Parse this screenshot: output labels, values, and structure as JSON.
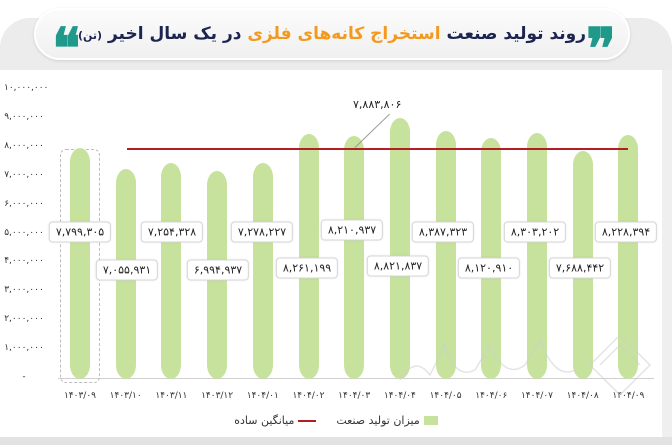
{
  "header": {
    "title_part1": "روند تولید صنعت ",
    "title_highlight": "استخراج کانه‌های فلزی",
    "title_part2": " در یک سال اخیر",
    "title_unit": "(تن)",
    "quote_open": "❝",
    "quote_close": "❞"
  },
  "colors": {
    "accent_teal": "#1f9a8a",
    "title_navy": "#1c2450",
    "title_orange": "#f29a1f",
    "bar_green": "#c6e29c",
    "avg_red": "#b01f24"
  },
  "legend": {
    "production": "میزان تولید صنعت",
    "average": "میانگین ساده"
  },
  "y_ticks": [
    "۱۰,۰۰۰,۰۰۰",
    "۹,۰۰۰,۰۰۰",
    "۸,۰۰۰,۰۰۰",
    "۷,۰۰۰,۰۰۰",
    "۶,۰۰۰,۰۰۰",
    "۵,۰۰۰,۰۰۰",
    "۴,۰۰۰,۰۰۰",
    "۳,۰۰۰,۰۰۰",
    "۲,۰۰۰,۰۰۰",
    "۱,۰۰۰,۰۰۰",
    "-"
  ],
  "x_labels": [
    "۱۴۰۳/۰۹",
    "۱۴۰۳/۱۰",
    "۱۴۰۳/۱۱",
    "۱۴۰۳/۱۲",
    "۱۴۰۴/۰۱",
    "۱۴۰۴/۰۲",
    "۱۴۰۴/۰۳",
    "۱۴۰۴/۰۴",
    "۱۴۰۴/۰۵",
    "۱۴۰۴/۰۶",
    "۱۴۰۴/۰۷",
    "۱۴۰۴/۰۸",
    "۱۴۰۴/۰۹"
  ],
  "value_labels": [
    "۷,۷۹۹,۳۰۵",
    "۷,۰۵۵,۹۳۱",
    "۷,۲۵۴,۳۲۸",
    "۶,۹۹۴,۹۳۷",
    "۷,۲۷۸,۲۲۷",
    "۸,۲۶۱,۱۹۹",
    "۸,۲۱۰,۹۳۷",
    "۸,۸۲۱,۸۳۷",
    "۸,۳۸۷,۳۲۳",
    "۸,۱۲۰,۹۱۰",
    "۸,۳۰۳,۲۰۲",
    "۷,۶۸۸,۴۴۲",
    "۸,۲۲۸,۳۹۴"
  ],
  "average_label": "۷,۸۸۳,۸۰۶",
  "chart_data": {
    "type": "bar",
    "title": "روند تولید صنعت استخراج کانه‌های فلزی در یک سال اخیر (تن)",
    "xlabel": "",
    "ylabel": "تن",
    "ylim": [
      0,
      10000000
    ],
    "categories": [
      "1403/09",
      "1403/10",
      "1403/11",
      "1403/12",
      "1404/01",
      "1404/02",
      "1404/03",
      "1404/04",
      "1404/05",
      "1404/06",
      "1404/07",
      "1404/08",
      "1404/09"
    ],
    "series": [
      {
        "name": "میزان تولید صنعت",
        "type": "bar",
        "values": [
          7799305,
          7055931,
          7254328,
          6994937,
          7278227,
          8261199,
          8210937,
          8821837,
          8387323,
          8120910,
          8303202,
          7688442,
          8228394
        ]
      },
      {
        "name": "میانگین ساده",
        "type": "line",
        "values": [
          7883806,
          7883806,
          7883806,
          7883806,
          7883806,
          7883806,
          7883806,
          7883806,
          7883806,
          7883806,
          7883806,
          7883806,
          7883806
        ]
      }
    ],
    "annotations": [
      {
        "text": "7,883,806",
        "target": "average line"
      }
    ],
    "grid": false,
    "legend_position": "bottom"
  }
}
